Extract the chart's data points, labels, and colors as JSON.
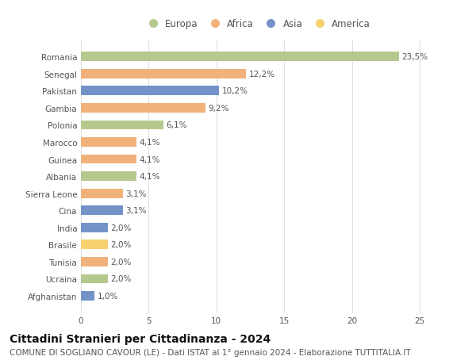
{
  "countries": [
    "Romania",
    "Senegal",
    "Pakistan",
    "Gambia",
    "Polonia",
    "Marocco",
    "Guinea",
    "Albania",
    "Sierra Leone",
    "Cina",
    "India",
    "Brasile",
    "Tunisia",
    "Ucraina",
    "Afghanistan"
  ],
  "values": [
    23.5,
    12.2,
    10.2,
    9.2,
    6.1,
    4.1,
    4.1,
    4.1,
    3.1,
    3.1,
    2.0,
    2.0,
    2.0,
    2.0,
    1.0
  ],
  "labels": [
    "23,5%",
    "12,2%",
    "10,2%",
    "9,2%",
    "6,1%",
    "4,1%",
    "4,1%",
    "4,1%",
    "3,1%",
    "3,1%",
    "2,0%",
    "2,0%",
    "2,0%",
    "2,0%",
    "1,0%"
  ],
  "continents": [
    "Europa",
    "Africa",
    "Asia",
    "Africa",
    "Europa",
    "Africa",
    "Africa",
    "Europa",
    "Africa",
    "Asia",
    "Asia",
    "America",
    "Africa",
    "Europa",
    "Asia"
  ],
  "continent_colors": {
    "Europa": "#b5c98e",
    "Africa": "#f0b27a",
    "Asia": "#7393c8",
    "America": "#f7d070"
  },
  "legend_order": [
    "Europa",
    "Africa",
    "Asia",
    "America"
  ],
  "xlim": [
    0,
    26
  ],
  "xticks": [
    0,
    5,
    10,
    15,
    20,
    25
  ],
  "title": "Cittadini Stranieri per Cittadinanza - 2024",
  "subtitle": "COMUNE DI SOGLIANO CAVOUR (LE) - Dati ISTAT al 1° gennaio 2024 - Elaborazione TUTTITALIA.IT",
  "background_color": "#ffffff",
  "grid_color": "#e0e0e0",
  "bar_height": 0.55,
  "title_fontsize": 10,
  "subtitle_fontsize": 7.5,
  "label_fontsize": 7.5,
  "tick_fontsize": 7.5,
  "legend_fontsize": 8.5
}
